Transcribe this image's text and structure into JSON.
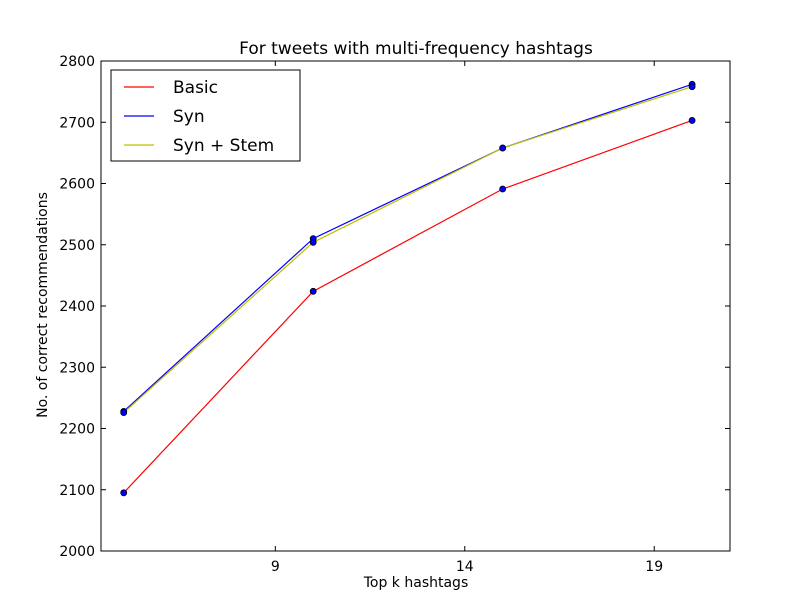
{
  "chart_data": {
    "type": "line",
    "title": "For tweets with multi-frequency hashtags",
    "xlabel": "Top k hashtags",
    "ylabel": "No. of correct recommendations",
    "x": [
      5,
      10,
      15,
      20
    ],
    "xlim": [
      4.4,
      21
    ],
    "ylim": [
      2000,
      2800
    ],
    "xticks": [
      9,
      14,
      19
    ],
    "yticks": [
      2000,
      2100,
      2200,
      2300,
      2400,
      2500,
      2600,
      2700,
      2800
    ],
    "legend_position": "top-left",
    "grid": false,
    "marker_color": "#0000ff",
    "series": [
      {
        "name": "Basic",
        "color": "#ff0000",
        "values": [
          2095,
          2424,
          2591,
          2703
        ]
      },
      {
        "name": "Syn",
        "color": "#0000ff",
        "values": [
          2228,
          2510,
          2658,
          2762
        ]
      },
      {
        "name": "Syn + Stem",
        "color": "#bfbf00",
        "values": [
          2226,
          2504,
          2658,
          2758
        ]
      }
    ]
  }
}
